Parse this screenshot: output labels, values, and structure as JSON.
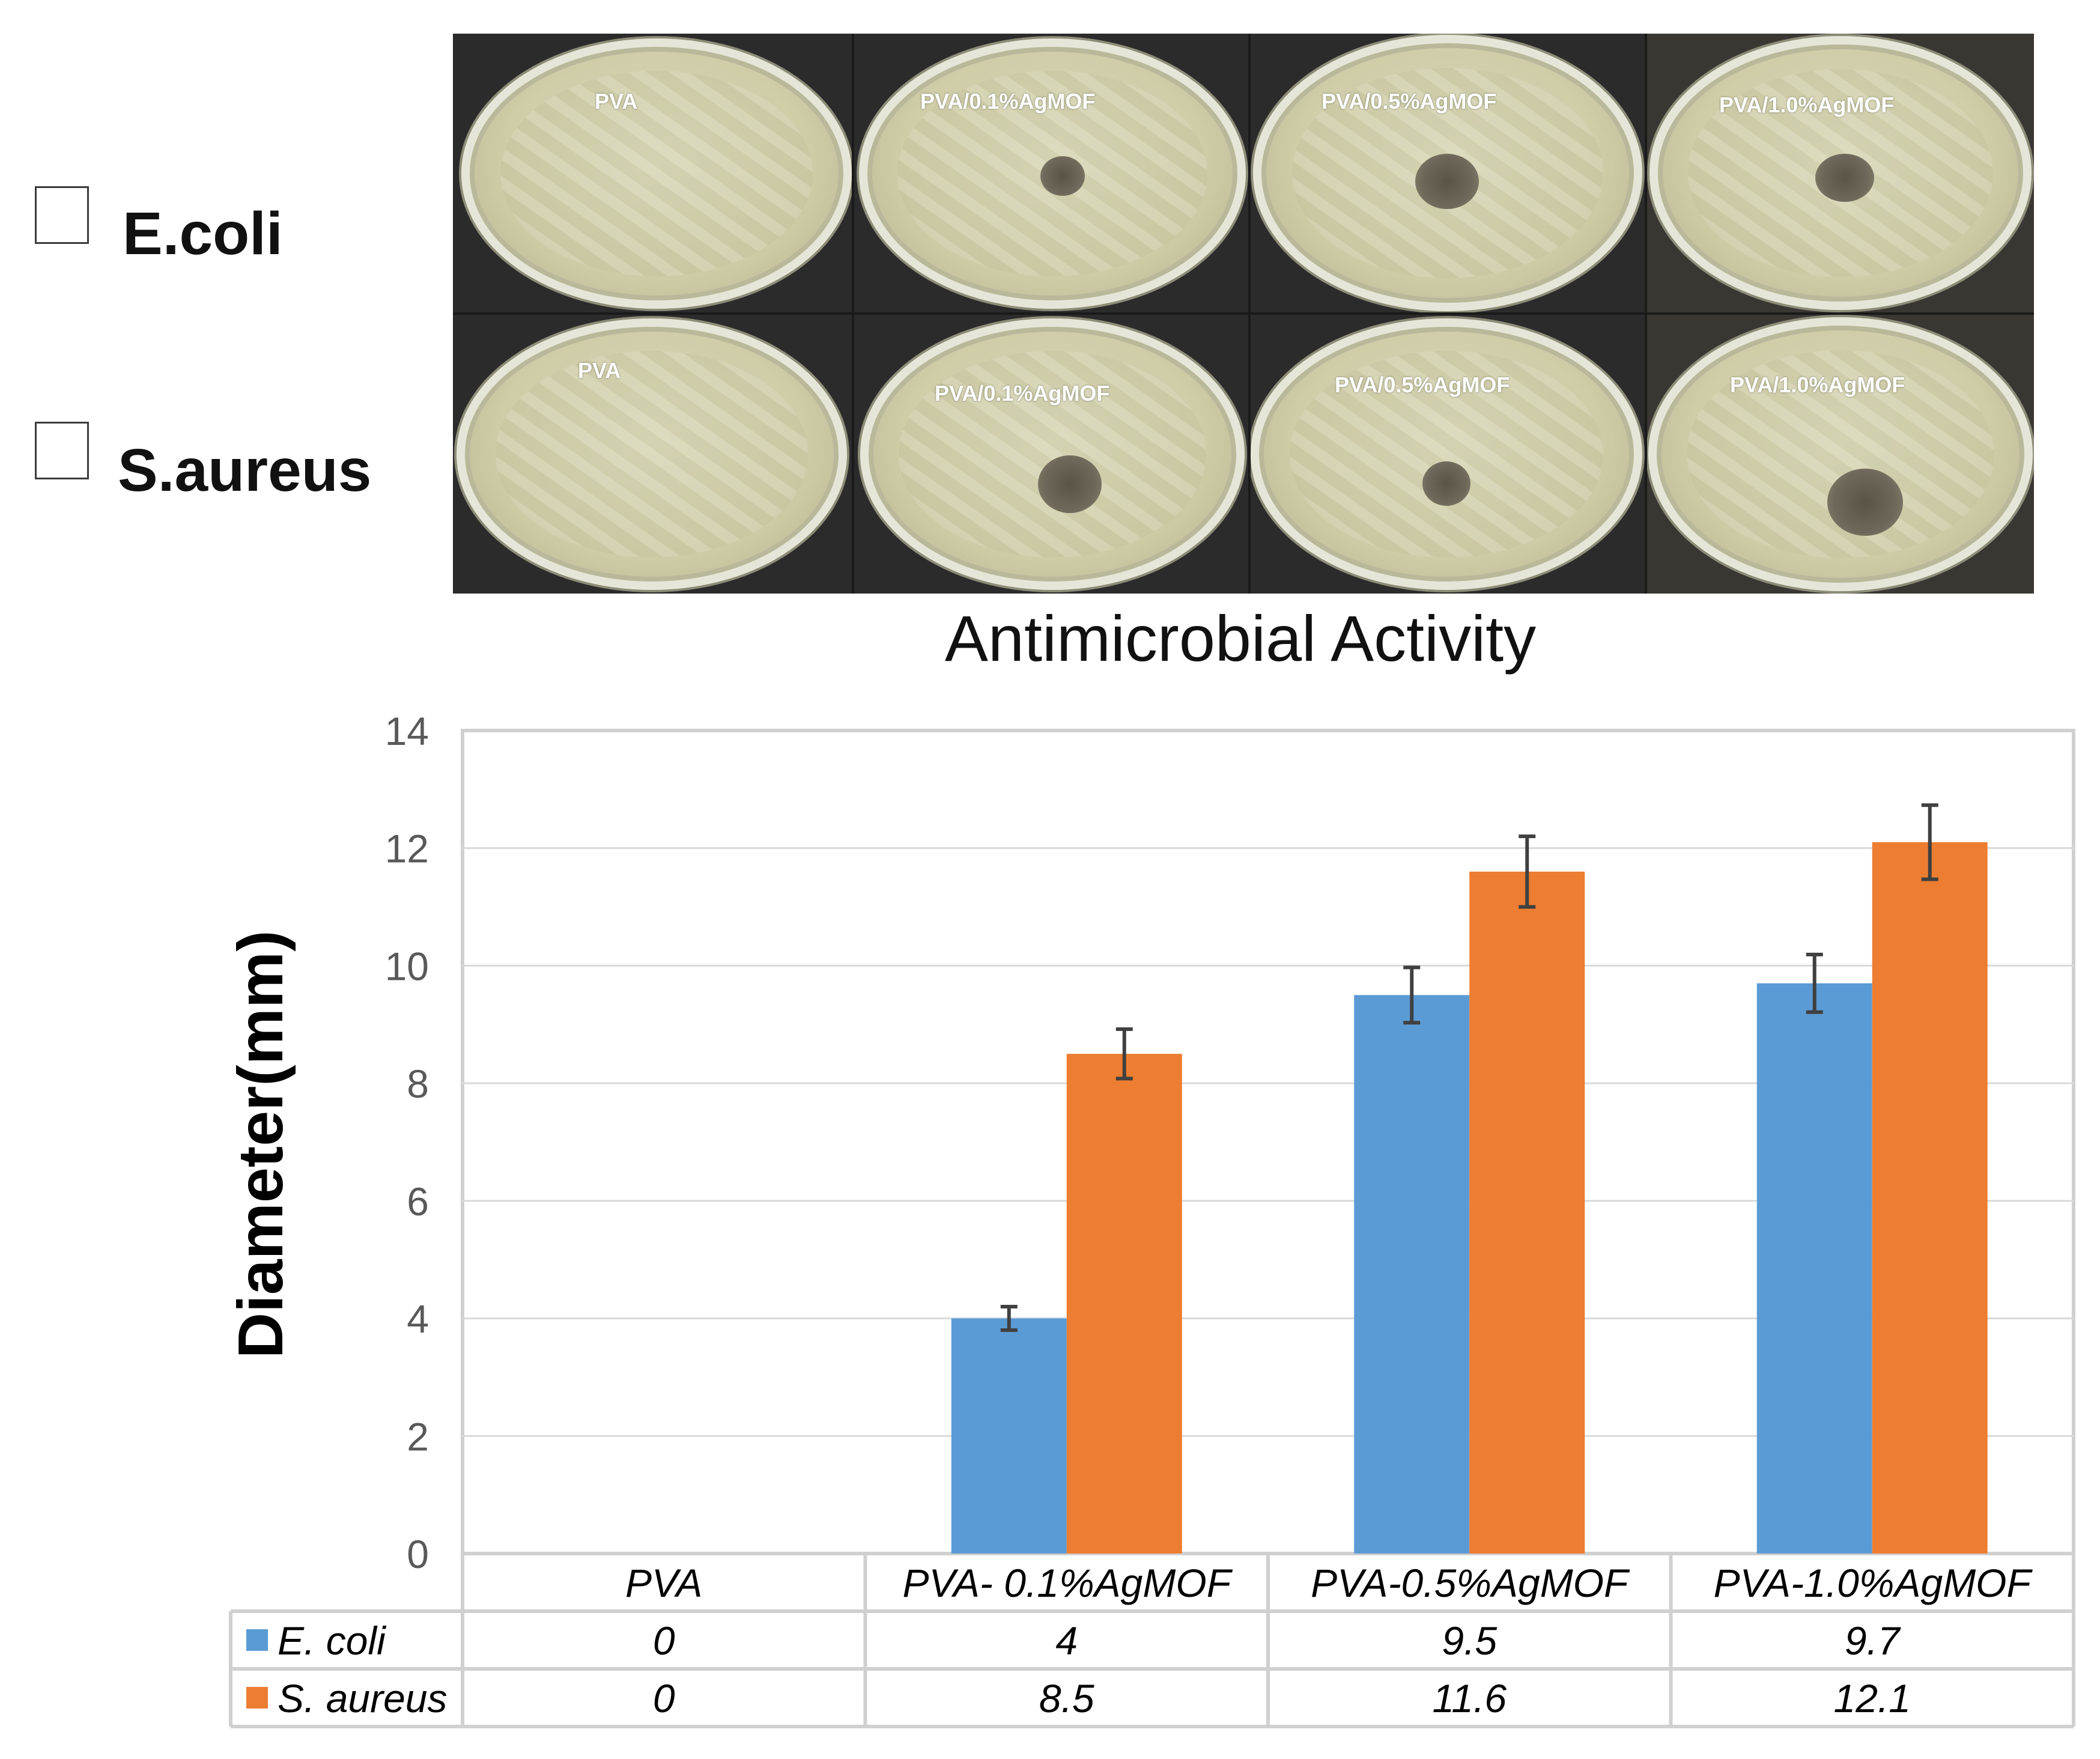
{
  "legend": {
    "items": [
      {
        "label": "E.coli",
        "color": "#5b9bd5"
      },
      {
        "label": "S.aureus",
        "color": "#ed7d31"
      }
    ]
  },
  "photos": {
    "top_row": [
      "PVA",
      "PVA/0.1%AgMOF",
      "PVA/0.5%AgMOF",
      "PVA/1.0%AgMOF"
    ],
    "bottom_row": [
      "PVA",
      "PVA/0.1%AgMOF",
      "PVA/0.5%AgMOF",
      "PVA/1.0%AgMOF"
    ]
  },
  "photo_title": "Antimicrobial Activity",
  "chart_data": {
    "type": "bar",
    "title": "",
    "xlabel": "",
    "ylabel": "Diameter(mm)",
    "ylim": [
      0,
      14
    ],
    "yticks": [
      0,
      2,
      4,
      6,
      8,
      10,
      12,
      14
    ],
    "grid": true,
    "categories": [
      "PVA",
      "PVA- 0.1%AgMOF",
      "PVA-0.5%AgMOF",
      "PVA-1.0%AgMOF"
    ],
    "series": [
      {
        "name": "E. coli",
        "color": "#5b9bd5",
        "values": [
          0,
          4,
          9.5,
          9.7
        ],
        "errors": [
          0,
          0.2,
          0.47,
          0.49
        ],
        "labels": [
          "0",
          "4",
          "9.5",
          "9.7"
        ]
      },
      {
        "name": "S. aureus",
        "color": "#ed7d31",
        "values": [
          0,
          8.5,
          11.6,
          12.1
        ],
        "errors": [
          0,
          0.42,
          0.6,
          0.63
        ],
        "labels": [
          "0",
          "8.5",
          "11.6",
          "12.1"
        ]
      }
    ]
  }
}
